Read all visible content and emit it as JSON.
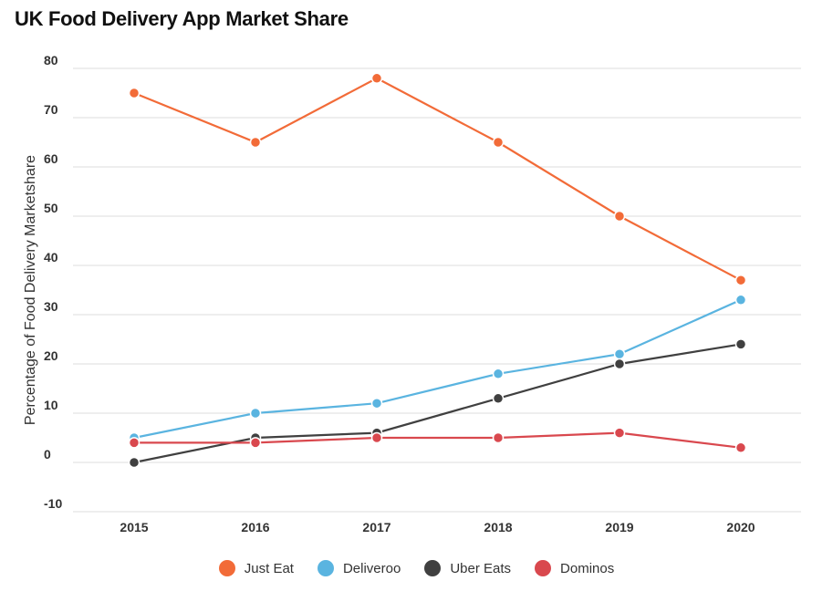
{
  "chart_data": {
    "type": "line",
    "title": "UK Food Delivery App Market Share",
    "xlabel": "",
    "ylabel": "Percentage of Food Delivery Marketshare",
    "categories": [
      "2015",
      "2016",
      "2017",
      "2018",
      "2019",
      "2020"
    ],
    "ylim": [
      -10,
      80
    ],
    "yticks": [
      "80",
      "70",
      "60",
      "50",
      "40",
      "30",
      "20",
      "10",
      "0",
      "-10"
    ],
    "grid": true,
    "legend_position": "bottom",
    "series": [
      {
        "name": "Just Eat",
        "color": "#f26b38",
        "values": [
          75,
          65,
          78,
          65,
          50,
          37
        ]
      },
      {
        "name": "Deliveroo",
        "color": "#5ab4e0",
        "values": [
          5,
          10,
          12,
          18,
          22,
          33
        ]
      },
      {
        "name": "Uber Eats",
        "color": "#404040",
        "values": [
          0,
          5,
          6,
          13,
          20,
          24
        ]
      },
      {
        "name": "Dominos",
        "color": "#d9484e",
        "values": [
          4,
          4,
          5,
          5,
          6,
          3
        ]
      }
    ]
  }
}
